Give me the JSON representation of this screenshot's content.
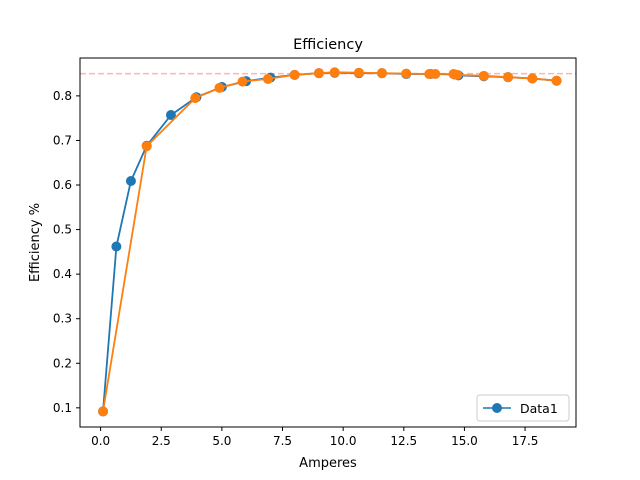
{
  "chart_data": {
    "type": "line",
    "title": "Efficiency",
    "xlabel": "Amperes",
    "ylabel": "Efficiency %",
    "xlim": [
      -0.85,
      19.6
    ],
    "ylim": [
      0.057,
      0.885
    ],
    "xticks": [
      0.0,
      2.5,
      5.0,
      7.5,
      10.0,
      12.5,
      15.0,
      17.5
    ],
    "xtick_labels": [
      "0.0",
      "2.5",
      "5.0",
      "7.5",
      "10.0",
      "12.5",
      "15.0",
      "17.5"
    ],
    "yticks": [
      0.1,
      0.2,
      0.3,
      0.4,
      0.5,
      0.6,
      0.7,
      0.8
    ],
    "ytick_labels": [
      "0.1",
      "0.2",
      "0.3",
      "0.4",
      "0.5",
      "0.6",
      "0.7",
      "0.8"
    ],
    "grid": false,
    "legend": {
      "position": "lower-right",
      "entries": [
        {
          "label": "Data1",
          "color": "#1f77b4"
        }
      ]
    },
    "reference_line": {
      "y": 0.85,
      "color": "#ffb3b3",
      "style": "dashed"
    },
    "series": [
      {
        "name": "Data1",
        "color": "#1f77b4",
        "x": [
          0.1,
          0.65,
          1.25,
          1.9,
          2.9,
          3.95,
          5.0,
          6.0,
          7.0,
          8.0,
          9.0,
          9.65,
          10.65,
          11.6,
          12.6,
          13.6,
          14.6,
          14.75,
          15.8,
          16.8,
          17.8,
          18.8
        ],
        "y": [
          0.092,
          0.462,
          0.609,
          0.688,
          0.757,
          0.797,
          0.82,
          0.833,
          0.841,
          0.847,
          0.851,
          0.852,
          0.851,
          0.851,
          0.849,
          0.849,
          0.848,
          0.846,
          0.844,
          0.842,
          0.839,
          0.834
        ]
      },
      {
        "color": "#ff7f0e",
        "x": [
          0.1,
          1.9,
          3.9,
          4.9,
          5.85,
          6.9,
          8.0,
          9.0,
          9.65,
          10.65,
          11.6,
          12.6,
          13.55,
          13.8,
          14.55,
          14.7,
          15.8,
          16.8,
          17.8,
          18.8
        ],
        "y": [
          0.092,
          0.687,
          0.795,
          0.818,
          0.832,
          0.838,
          0.847,
          0.851,
          0.853,
          0.852,
          0.851,
          0.85,
          0.849,
          0.849,
          0.849,
          0.847,
          0.845,
          0.842,
          0.839,
          0.834
        ]
      }
    ]
  }
}
